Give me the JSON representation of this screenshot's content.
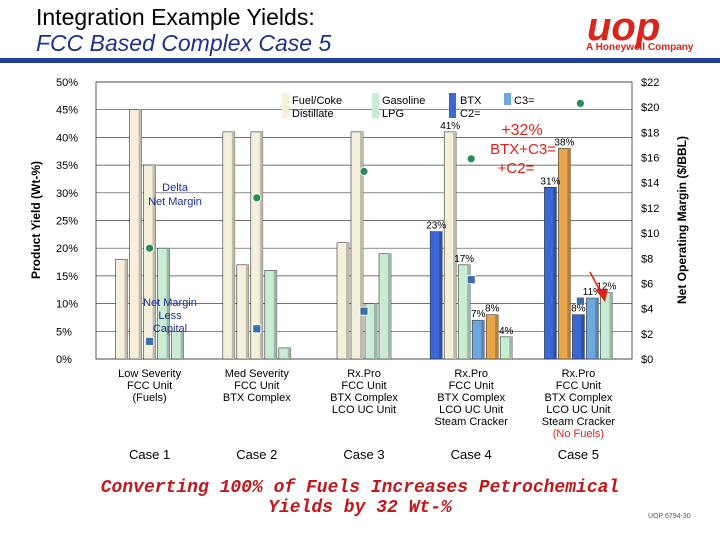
{
  "header": {
    "title": "Integration Example Yields:",
    "subtitle": "FCC Based Complex Case 5",
    "logo_text": "uop",
    "logo_subtext": "A Honeywell Company"
  },
  "footer": {
    "conclusion_line1": "Converting 100% of Fuels Increases Petrochemical",
    "conclusion_line2": "Yields by 32 Wt-%",
    "doc_id": "UOP 6794-30"
  },
  "colors": {
    "fuel": "#f5f0dc",
    "gasoline": "#c9ecd2",
    "btx": "#3a66d6",
    "c3": "#6fa8dc",
    "c2": "#e8a64a",
    "c2_darker": "#cc6e22",
    "margin_marker": "#2c8a5a",
    "capital_marker": "#3d6ea8",
    "highlight_red": "#e0221a",
    "title_blue": "#1f2f8c"
  },
  "chart_data": {
    "type": "bar",
    "title": "",
    "ylabel": "Product Yield (Wt-%)",
    "y2label": "Net Operating Margin ($/BBL)",
    "ylim": [
      0,
      50
    ],
    "y2lim": [
      0,
      22
    ],
    "yticks": [
      "0%",
      "5%",
      "10%",
      "15%",
      "20%",
      "25%",
      "30%",
      "35%",
      "40%",
      "45%",
      "50%"
    ],
    "y2ticks": [
      "$0",
      "$2",
      "$4",
      "$6",
      "$8",
      "$10",
      "$12",
      "$14",
      "$16",
      "$18",
      "$20",
      "$22"
    ],
    "legend": [
      {
        "key": "fuel",
        "label": "Fuel/Coke Distillate"
      },
      {
        "key": "gasoline",
        "label": "Gasoline LPG"
      },
      {
        "key": "btx",
        "label": "BTX"
      },
      {
        "key": "c2",
        "label": "C2="
      },
      {
        "key": "c3",
        "label": "C3="
      }
    ],
    "cases": [
      {
        "name": "Case 1",
        "description": [
          "Low Severity",
          "FCC Unit",
          "(Fuels)"
        ],
        "bars": [
          {
            "key": "fuel",
            "value": 18
          },
          {
            "key": "fuel",
            "value": 45
          },
          {
            "key": "fuel",
            "value": 35
          },
          {
            "key": "gasoline",
            "value": 20
          },
          {
            "key": "gasoline",
            "value": 5
          }
        ],
        "delta_margin": 8.8,
        "capital_margin": 1.4
      },
      {
        "name": "Case 2",
        "description": [
          "Med Severity",
          "FCC Unit",
          "BTX Complex"
        ],
        "bars": [
          {
            "key": "fuel",
            "value": 41
          },
          {
            "key": "fuel",
            "value": 17
          },
          {
            "key": "fuel",
            "value": 41
          },
          {
            "key": "gasoline",
            "value": 16
          },
          {
            "key": "gasoline",
            "value": 2
          }
        ],
        "delta_margin": 12.8,
        "capital_margin": 2.4
      },
      {
        "name": "Case 3",
        "description": [
          "Rx.Pro",
          "FCC Unit",
          "BTX Complex",
          "LCO UC Unit"
        ],
        "bars": [
          {
            "key": "fuel",
            "value": 21
          },
          {
            "key": "fuel",
            "value": 41
          },
          {
            "key": "gasoline",
            "value": 10
          },
          {
            "key": "gasoline",
            "value": 19
          }
        ],
        "delta_margin": 14.9,
        "capital_margin": 3.8
      },
      {
        "name": "Case 4",
        "description": [
          "Rx.Pro",
          "FCC Unit",
          "BTX Complex",
          "LCO UC Unit",
          "Steam Cracker"
        ],
        "bars": [
          {
            "key": "btx",
            "value": 23,
            "label": "23%"
          },
          {
            "key": "fuel",
            "value": 41,
            "label": "41%"
          },
          {
            "key": "gasoline",
            "value": 17,
            "label": "17%"
          },
          {
            "key": "c3",
            "value": 7,
            "label": "7%"
          },
          {
            "key": "c2",
            "value": 8,
            "label": "8%"
          },
          {
            "key": "gasoline",
            "value": 4,
            "label": "4%"
          }
        ],
        "delta_margin": 15.9,
        "capital_margin": 6.3
      },
      {
        "name": "Case 5",
        "description": [
          "Rx.Pro",
          "FCC Unit",
          "BTX Complex",
          "LCO UC Unit",
          "Steam Cracker",
          "(No Fuels)"
        ],
        "bars": [
          {
            "key": "btx",
            "value": 31,
            "label": "31%"
          },
          {
            "key": "c2",
            "value": 38,
            "label": "38%"
          },
          {
            "key": "btx",
            "value": 8,
            "label": "8%"
          },
          {
            "key": "c3",
            "value": 11,
            "label": "11%"
          },
          {
            "key": "gasoline",
            "value": 12,
            "label": "12%"
          }
        ],
        "delta_margin": 20.3,
        "capital_margin": 4.6
      }
    ],
    "annotations": {
      "delta_margin": "Delta Net Margin",
      "capital_margin": "Net Margin Less Capital",
      "callout_line1": "+32%",
      "callout_line2": "BTX+C3=",
      "callout_line3": "+C2="
    }
  }
}
